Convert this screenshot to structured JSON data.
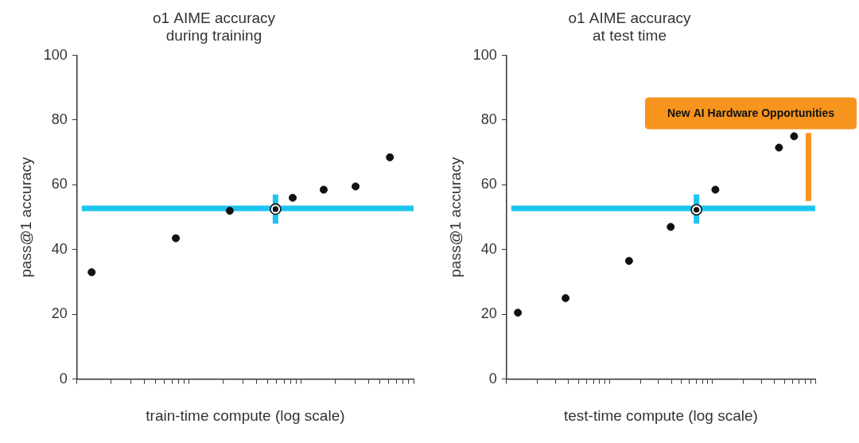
{
  "chart_data": [
    {
      "type": "scatter",
      "title": [
        "o1 AIME accuracy",
        "during training"
      ],
      "x_label": "train-time compute (log scale)",
      "y_label": "pass@1 accuracy",
      "x": [
        1.35,
        7.6,
        23,
        58.8,
        83.6,
        158,
        304,
        615
      ],
      "values": [
        33,
        43.5,
        52,
        52.5,
        56,
        58.5,
        59.5,
        68.5
      ],
      "color": "#111111",
      "log": "x",
      "xlim": [
        1,
        1000
      ],
      "xticks": [
        1,
        2,
        3,
        4,
        5,
        6,
        7,
        8,
        9,
        10,
        20,
        30,
        40,
        50,
        60,
        70,
        80,
        90,
        100,
        200,
        300,
        400,
        500,
        600,
        700,
        800,
        900,
        1000
      ],
      "ylim": [
        0,
        100
      ],
      "yticks": [
        0,
        20,
        40,
        60,
        80,
        100
      ],
      "grid": false,
      "legend": "none",
      "tick_labels": "y",
      "reference_line": {
        "y": 52.7,
        "color": "#1ec4f0"
      },
      "highlight": {
        "x": 58.8,
        "ymin": 48,
        "ymax": 57,
        "color": "#1ec4f0"
      }
    },
    {
      "type": "scatter",
      "title": [
        "o1 AIME accuracy",
        "at test time"
      ],
      "x_label": "test-time compute (log scale)",
      "y_label": "pass@1 accuracy",
      "x": [
        1.29,
        3.75,
        15.5,
        39.4,
        70.1,
        107,
        444,
        623
      ],
      "values": [
        20.5,
        25,
        36.5,
        47,
        52.3,
        58.5,
        71.5,
        75
      ],
      "color": "#111111",
      "log": "x",
      "xlim": [
        1,
        1000
      ],
      "xticks": [
        1,
        2,
        3,
        4,
        5,
        6,
        7,
        8,
        9,
        10,
        20,
        30,
        40,
        50,
        60,
        70,
        80,
        90,
        100,
        200,
        300,
        400,
        500,
        600,
        700,
        800,
        900,
        1000
      ],
      "ylim": [
        0,
        100
      ],
      "yticks": [
        0,
        20,
        40,
        60,
        80,
        100
      ],
      "grid": false,
      "legend": "none",
      "tick_labels": "y",
      "reference_line": {
        "y": 52.7,
        "color": "#1ec4f0"
      },
      "highlight": {
        "x": 70.1,
        "ymin": 48,
        "ymax": 57,
        "color": "#1ec4f0"
      },
      "annotation": {
        "text": "New AI Hardware Opportunities",
        "x": 859,
        "ymin": 55,
        "ymax": 76,
        "color": "#f7941d"
      }
    }
  ]
}
